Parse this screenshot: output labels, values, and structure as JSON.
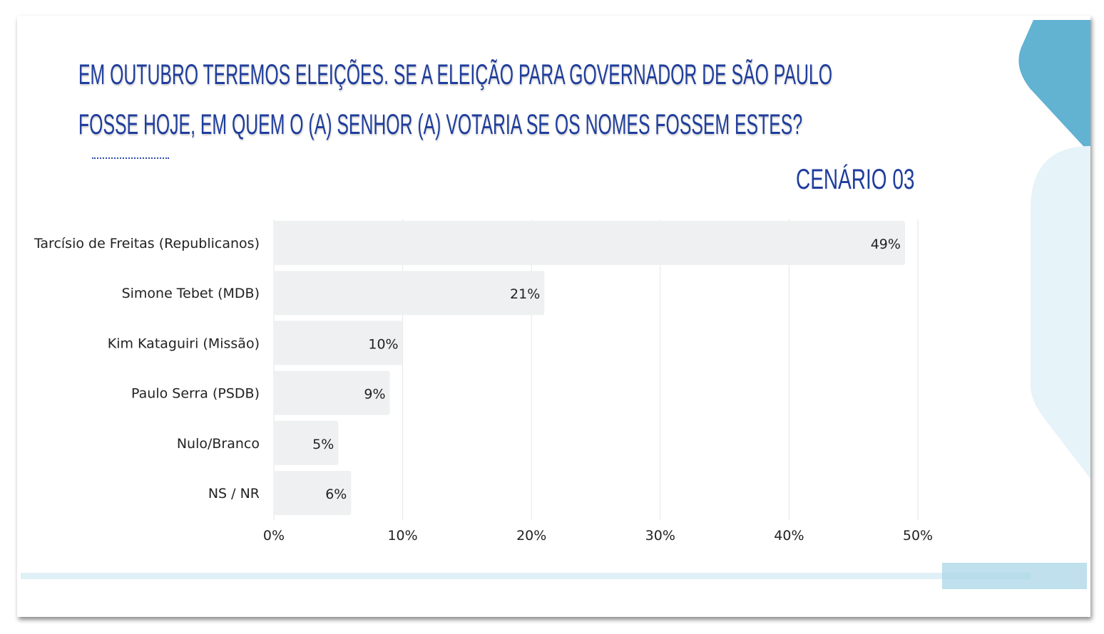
{
  "title_lines": [
    "EM OUTUBRO TEREMOS ELEIÇÕES. SE A ELEIÇÃO PARA GOVERNADOR DE SÃO PAULO",
    "FOSSE HOJE, EM QUEM O (A) SENHOR (A) VOTARIA SE OS NOMES FOSSEM ESTES?"
  ],
  "scenario": "CENÁRIO 03",
  "colors": {
    "title": "#1f3d9c",
    "bar": "#eef0f1",
    "accent": "#62b2d2",
    "accent_light": "#e6f3f8"
  },
  "chart_data": {
    "type": "bar",
    "orientation": "horizontal",
    "categories": [
      "Tarcísio de Freitas (Republicanos)",
      "Simone Tebet (MDB)",
      "Kim Kataguiri (Missão)",
      "Paulo Serra (PSDB)",
      "Nulo/Branco",
      "NS / NR"
    ],
    "values": [
      49,
      21,
      10,
      9,
      5,
      6
    ],
    "data_labels": [
      "49%",
      "21%",
      "10%",
      "9%",
      "5%",
      "6%"
    ],
    "xlim": [
      0,
      50
    ],
    "xticks": [
      "0%",
      "10%",
      "20%",
      "30%",
      "40%",
      "50%"
    ],
    "grid": true
  }
}
